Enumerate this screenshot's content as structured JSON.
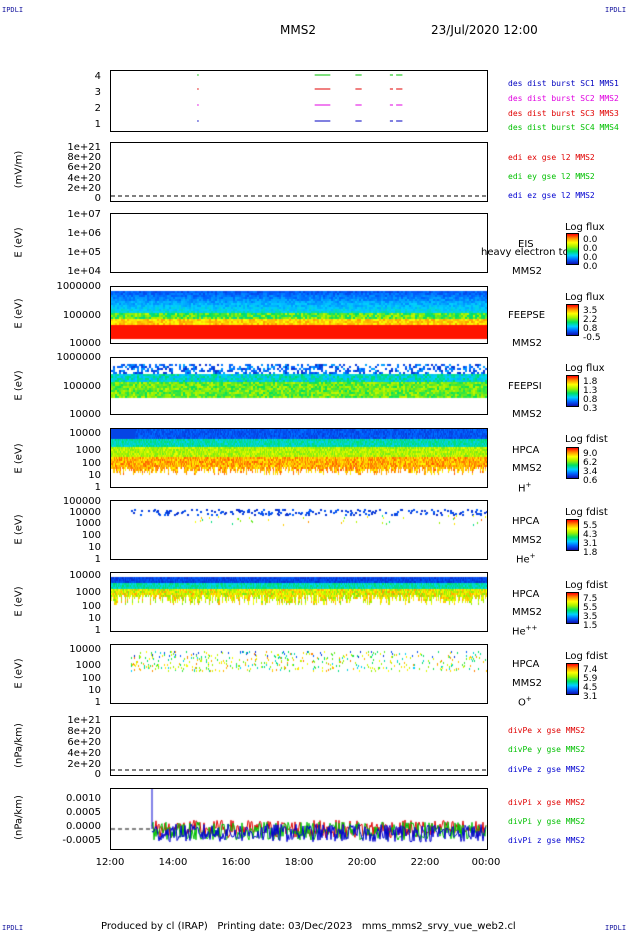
{
  "header": {
    "corner_left": "IPDLI",
    "corner_right": "IPDLI",
    "spacecraft": "MMS2",
    "datetime": "23/Jul/2020 12:00"
  },
  "footer": {
    "corner_left": "IPDLI",
    "corner_right": "IPDLI",
    "produced": "Produced by cl (IRAP)",
    "printing_date": "Printing date: 03/Dec/2023",
    "script": "mms_mms2_srvy_vue_web2.cl"
  },
  "x_axis": {
    "ticks": [
      "12:00",
      "14:00",
      "16:00",
      "18:00",
      "20:00",
      "22:00",
      "00:00"
    ]
  },
  "panels": {
    "burst": {
      "yticks": [
        "4",
        "3",
        "2",
        "1"
      ],
      "legend": [
        "des dist burst SC1 MMS1",
        "des dist burst SC2 MMS2",
        "des dist burst SC3 MMS3",
        "des dist burst SC4 MMS4"
      ]
    },
    "edi": {
      "ylabel": "(mV/m)",
      "yticks": [
        "1e+21",
        "8e+20",
        "6e+20",
        "4e+20",
        "2e+20",
        "0"
      ],
      "legend": [
        "edi ex gse l2 MMS2",
        "edi ey gse l2 MMS2",
        "edi ez gse l2 MMS2"
      ]
    },
    "eis": {
      "ylabel": "E (eV)",
      "yticks": [
        "1e+07",
        "1e+06",
        "1e+05",
        "1e+04"
      ],
      "instrument": "EIS",
      "overlay": "heavy electron to",
      "sc": "MMS2",
      "cb_title": "Log flux",
      "cb_values": [
        "0.0",
        "0.0",
        "0.0",
        "0.0"
      ]
    },
    "feepse": {
      "ylabel": "E (eV)",
      "yticks": [
        "1000000",
        "100000",
        "10000"
      ],
      "instrument": "FEEPSE",
      "sc": "MMS2",
      "cb_title": "Log flux",
      "cb_values": [
        "3.5",
        "2.2",
        "0.8",
        "-0.5"
      ]
    },
    "feepsi": {
      "ylabel": "E (eV)",
      "yticks": [
        "1000000",
        "100000",
        "10000"
      ],
      "instrument": "FEEPSI",
      "sc": "MMS2",
      "cb_title": "Log flux",
      "cb_values": [
        "1.8",
        "1.3",
        "0.8",
        "0.3"
      ]
    },
    "hpca_h": {
      "ylabel": "E (eV)",
      "yticks": [
        "10000",
        "1000",
        "100",
        "10",
        "1"
      ],
      "instrument": "HPCA",
      "sc": "MMS2",
      "species": "H",
      "charge": "+",
      "cb_title": "Log fdist",
      "cb_values": [
        "9.0",
        "6.2",
        "3.4",
        "0.6"
      ]
    },
    "hpca_he": {
      "ylabel": "E (eV)",
      "yticks": [
        "100000",
        "10000",
        "1000",
        "100",
        "10",
        "1"
      ],
      "instrument": "HPCA",
      "sc": "MMS2",
      "species": "He",
      "charge": "+",
      "cb_title": "Log fdist",
      "cb_values": [
        "5.5",
        "4.3",
        "3.1",
        "1.8"
      ]
    },
    "hpca_hepp": {
      "ylabel": "E (eV)",
      "yticks": [
        "10000",
        "1000",
        "100",
        "10",
        "1"
      ],
      "instrument": "HPCA",
      "sc": "MMS2",
      "species": "He",
      "charge": "++",
      "cb_title": "Log fdist",
      "cb_values": [
        "7.5",
        "5.5",
        "3.5",
        "1.5"
      ]
    },
    "hpca_o": {
      "ylabel": "E (eV)",
      "yticks": [
        "10000",
        "1000",
        "100",
        "10",
        "1"
      ],
      "instrument": "HPCA",
      "sc": "MMS2",
      "species": "O",
      "charge": "+",
      "cb_title": "Log fdist",
      "cb_values": [
        "7.4",
        "5.9",
        "4.5",
        "3.1"
      ]
    },
    "divpe": {
      "ylabel": "(nPa/km)",
      "yticks": [
        "1e+21",
        "8e+20",
        "6e+20",
        "4e+20",
        "2e+20",
        "0"
      ],
      "legend": [
        "divPe x gse MMS2",
        "divPe y gse MMS2",
        "divPe z gse MMS2"
      ]
    },
    "divpi": {
      "ylabel": "(nPa/km)",
      "yticks": [
        "0.0010",
        "0.0005",
        "0.0000",
        "-0.0005"
      ],
      "legend": [
        "divPi x gse MMS2",
        "divPi y gse MMS2",
        "divPi z gse MMS2"
      ]
    }
  },
  "colors": {
    "c1": "#0000c0",
    "c2": "#e000e0",
    "c3": "#e00000",
    "c4": "#00c000",
    "x": "#e00000",
    "y": "#00c000",
    "z": "#0000d0"
  },
  "chart_data": {
    "type": "heatmap",
    "x_range": [
      "12:00",
      "00:00"
    ],
    "burst_intervals_hours": [
      [
        14.75,
        14.8
      ],
      [
        18.5,
        19.0
      ],
      [
        19.8,
        20.0
      ],
      [
        20.9,
        21.0
      ],
      [
        21.1,
        21.3
      ]
    ],
    "divPi_range": [
      -0.0005,
      0.001
    ]
  }
}
